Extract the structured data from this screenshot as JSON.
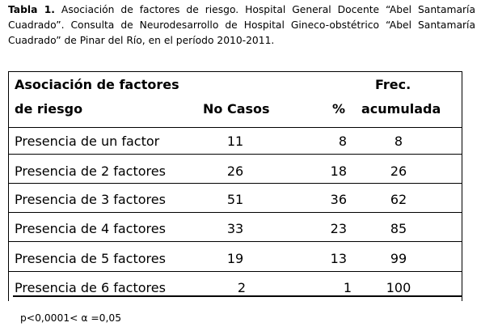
{
  "caption": {
    "label": "Tabla 1.",
    "text": "Asociación de factores de riesgo. Hospital General Docente “Abel Santamaría Cuadrado”. Consulta de Neurodesarrollo de Hospital Gineco-obstétrico “Abel Santamaría Cuadrado” de Pinar del Río, en el período 2010-2011."
  },
  "table": {
    "headers": {
      "col1_line1": "Asociación de factores",
      "col1_line2": "de riesgo",
      "col2": "No Casos",
      "col3": "%",
      "col4_line1": "Frec.",
      "col4_line2": "acumulada"
    },
    "rows": [
      {
        "factor": "Presencia de un factor",
        "casos": "11",
        "pct": "8",
        "frec": "8"
      },
      {
        "factor": "Presencia de 2 factores",
        "casos": "26",
        "pct": "18",
        "frec": "26"
      },
      {
        "factor": "Presencia de 3 factores",
        "casos": "51",
        "pct": "36",
        "frec": "62"
      },
      {
        "factor": "Presencia de 4 factores",
        "casos": "33",
        "pct": "23",
        "frec": "85"
      },
      {
        "factor": "Presencia de 5 factores",
        "casos": "19",
        "pct": "13",
        "frec": "99"
      },
      {
        "factor": "Presencia de 6 factores",
        "casos": "2",
        "pct": "1",
        "frec": "100"
      }
    ]
  },
  "note": "p<0,0001< α =0,05"
}
